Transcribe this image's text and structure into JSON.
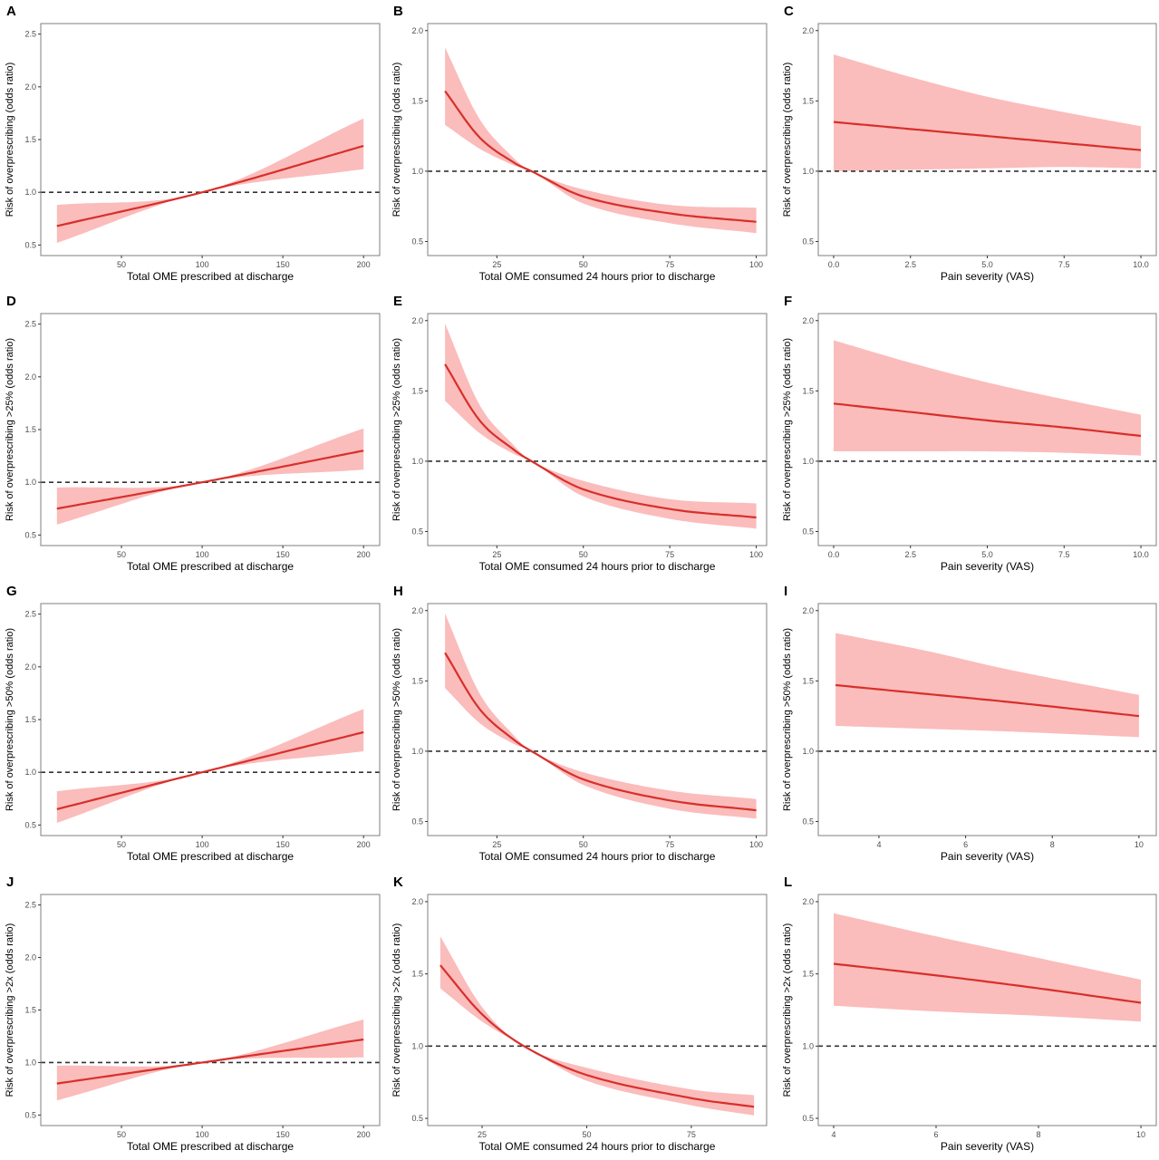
{
  "colors": {
    "line": "#d7302a",
    "band": "#fbbcbc",
    "reference": "#333333",
    "frame": "#7f7f7f"
  },
  "chart_data": [
    {
      "panel": "A",
      "type": "area",
      "xlabel": "Total OME prescribed at discharge",
      "ylabel": "Risk of overprescribing (odds ratio)",
      "xlim": [
        0,
        210
      ],
      "ylim": [
        0.4,
        2.6
      ],
      "xticks": [
        "50",
        "100",
        "150",
        "200"
      ],
      "xtickValues": [
        50,
        100,
        150,
        200
      ],
      "yticks": [
        "0.5",
        "1.0",
        "1.5",
        "2.0",
        "2.5"
      ],
      "ytickValues": [
        0.5,
        1.0,
        1.5,
        2.0,
        2.5
      ],
      "reference": 1.0,
      "x": [
        10,
        100,
        200
      ],
      "y": [
        0.68,
        1.0,
        1.44
      ],
      "lower": [
        0.52,
        1.0,
        1.22
      ],
      "upper": [
        0.88,
        1.0,
        1.7
      ]
    },
    {
      "panel": "B",
      "type": "area",
      "xlabel": "Total OME consumed 24 hours prior to discharge",
      "ylabel": "Risk of overprescribing (odds ratio)",
      "xlim": [
        5,
        103
      ],
      "ylim": [
        0.4,
        2.05
      ],
      "xticks": [
        "25",
        "50",
        "75",
        "100"
      ],
      "xtickValues": [
        25,
        50,
        75,
        100
      ],
      "yticks": [
        "0.5",
        "1.0",
        "1.5",
        "2.0"
      ],
      "ytickValues": [
        0.5,
        1.0,
        1.5,
        2.0
      ],
      "reference": 1.0,
      "x": [
        10,
        20,
        30,
        35,
        50,
        75,
        100
      ],
      "y": [
        1.57,
        1.24,
        1.06,
        1.0,
        0.82,
        0.7,
        0.64
      ],
      "lower": [
        1.33,
        1.16,
        1.04,
        1.0,
        0.77,
        0.63,
        0.56
      ],
      "upper": [
        1.88,
        1.37,
        1.09,
        1.0,
        0.87,
        0.76,
        0.74
      ]
    },
    {
      "panel": "C",
      "type": "area",
      "xlabel": "Pain severity (VAS)",
      "ylabel": "Risk of overprescribing (odds ratio)",
      "xlim": [
        -0.5,
        10.5
      ],
      "ylim": [
        0.4,
        2.05
      ],
      "xticks": [
        "0.0",
        "2.5",
        "5.0",
        "7.5",
        "10.0"
      ],
      "xtickValues": [
        0,
        2.5,
        5,
        7.5,
        10
      ],
      "yticks": [
        "0.5",
        "1.0",
        "1.5",
        "2.0"
      ],
      "ytickValues": [
        0.5,
        1.0,
        1.5,
        2.0
      ],
      "reference": 1.0,
      "x": [
        0,
        2.5,
        5,
        7.5,
        10
      ],
      "y": [
        1.35,
        1.3,
        1.25,
        1.2,
        1.15
      ],
      "lower": [
        1.0,
        1.01,
        1.02,
        1.03,
        1.02
      ],
      "upper": [
        1.83,
        1.67,
        1.53,
        1.42,
        1.32
      ]
    },
    {
      "panel": "D",
      "type": "area",
      "xlabel": "Total OME prescribed at discharge",
      "ylabel": "Risk of overprescribing >25% (odds ratio)",
      "xlim": [
        0,
        210
      ],
      "ylim": [
        0.4,
        2.6
      ],
      "xticks": [
        "50",
        "100",
        "150",
        "200"
      ],
      "xtickValues": [
        50,
        100,
        150,
        200
      ],
      "yticks": [
        "0.5",
        "1.0",
        "1.5",
        "2.0",
        "2.5"
      ],
      "ytickValues": [
        0.5,
        1.0,
        1.5,
        2.0,
        2.5
      ],
      "reference": 1.0,
      "x": [
        10,
        100,
        200
      ],
      "y": [
        0.75,
        1.0,
        1.3
      ],
      "lower": [
        0.6,
        1.0,
        1.12
      ],
      "upper": [
        0.95,
        1.0,
        1.51
      ]
    },
    {
      "panel": "E",
      "type": "area",
      "xlabel": "Total OME consumed 24 hours prior to discharge",
      "ylabel": "Risk of overprescribing >25% (odds ratio)",
      "xlim": [
        5,
        103
      ],
      "ylim": [
        0.4,
        2.05
      ],
      "xticks": [
        "25",
        "50",
        "75",
        "100"
      ],
      "xtickValues": [
        25,
        50,
        75,
        100
      ],
      "yticks": [
        "0.5",
        "1.0",
        "1.5",
        "2.0"
      ],
      "ytickValues": [
        0.5,
        1.0,
        1.5,
        2.0
      ],
      "reference": 1.0,
      "x": [
        10,
        20,
        30,
        35,
        50,
        75,
        100
      ],
      "y": [
        1.69,
        1.29,
        1.08,
        1.0,
        0.8,
        0.66,
        0.6
      ],
      "lower": [
        1.43,
        1.2,
        1.05,
        1.0,
        0.75,
        0.59,
        0.52
      ],
      "upper": [
        1.98,
        1.4,
        1.11,
        1.0,
        0.86,
        0.73,
        0.7
      ]
    },
    {
      "panel": "F",
      "type": "area",
      "xlabel": "Pain severity (VAS)",
      "ylabel": "Risk of overprescribing >25% (odds ratio)",
      "xlim": [
        -0.5,
        10.5
      ],
      "ylim": [
        0.4,
        2.05
      ],
      "xticks": [
        "0.0",
        "2.5",
        "5.0",
        "7.5",
        "10.0"
      ],
      "xtickValues": [
        0,
        2.5,
        5,
        7.5,
        10
      ],
      "yticks": [
        "0.5",
        "1.0",
        "1.5",
        "2.0"
      ],
      "ytickValues": [
        0.5,
        1.0,
        1.5,
        2.0
      ],
      "reference": 1.0,
      "x": [
        0,
        2.5,
        5,
        7.5,
        10
      ],
      "y": [
        1.41,
        1.35,
        1.29,
        1.24,
        1.18
      ],
      "lower": [
        1.07,
        1.07,
        1.07,
        1.06,
        1.04
      ],
      "upper": [
        1.86,
        1.7,
        1.56,
        1.44,
        1.33
      ]
    },
    {
      "panel": "G",
      "type": "area",
      "xlabel": "Total OME prescribed at discharge",
      "ylabel": "Risk of overprescribing >50% (odds ratio)",
      "xlim": [
        0,
        210
      ],
      "ylim": [
        0.4,
        2.6
      ],
      "xticks": [
        "50",
        "100",
        "150",
        "200"
      ],
      "xtickValues": [
        50,
        100,
        150,
        200
      ],
      "yticks": [
        "0.5",
        "1.0",
        "1.5",
        "2.0",
        "2.5"
      ],
      "ytickValues": [
        0.5,
        1.0,
        1.5,
        2.0,
        2.5
      ],
      "reference": 1.0,
      "x": [
        10,
        100,
        200
      ],
      "y": [
        0.65,
        1.0,
        1.38
      ],
      "lower": [
        0.52,
        1.0,
        1.2
      ],
      "upper": [
        0.82,
        1.0,
        1.6
      ]
    },
    {
      "panel": "H",
      "type": "area",
      "xlabel": "Total OME consumed 24 hours prior to discharge",
      "ylabel": "Risk of overprescribing >50% (odds ratio)",
      "xlim": [
        5,
        103
      ],
      "ylim": [
        0.4,
        2.05
      ],
      "xticks": [
        "25",
        "50",
        "75",
        "100"
      ],
      "xtickValues": [
        25,
        50,
        75,
        100
      ],
      "yticks": [
        "0.5",
        "1.0",
        "1.5",
        "2.0"
      ],
      "ytickValues": [
        0.5,
        1.0,
        1.5,
        2.0
      ],
      "reference": 1.0,
      "x": [
        10,
        20,
        30,
        35,
        50,
        75,
        100
      ],
      "y": [
        1.7,
        1.3,
        1.08,
        1.0,
        0.8,
        0.65,
        0.58
      ],
      "lower": [
        1.45,
        1.2,
        1.05,
        1.0,
        0.76,
        0.59,
        0.52
      ],
      "upper": [
        1.98,
        1.41,
        1.11,
        1.0,
        0.85,
        0.72,
        0.66
      ]
    },
    {
      "panel": "I",
      "type": "area",
      "xlabel": "Pain severity (VAS)",
      "ylabel": "Risk of overprescribing >50% (odds ratio)",
      "xlim": [
        2.6,
        10.4
      ],
      "ylim": [
        0.4,
        2.05
      ],
      "xticks": [
        "4",
        "6",
        "8",
        "10"
      ],
      "xtickValues": [
        4,
        6,
        8,
        10
      ],
      "yticks": [
        "0.5",
        "1.0",
        "1.5",
        "2.0"
      ],
      "ytickValues": [
        0.5,
        1.0,
        1.5,
        2.0
      ],
      "reference": 1.0,
      "x": [
        3,
        5,
        7,
        10
      ],
      "y": [
        1.47,
        1.41,
        1.35,
        1.25
      ],
      "lower": [
        1.18,
        1.16,
        1.14,
        1.1
      ],
      "upper": [
        1.84,
        1.72,
        1.58,
        1.4
      ]
    },
    {
      "panel": "J",
      "type": "area",
      "xlabel": "Total OME prescribed at discharge",
      "ylabel": "Risk of overprescribing >2x (odds ratio)",
      "xlim": [
        0,
        210
      ],
      "ylim": [
        0.4,
        2.6
      ],
      "xticks": [
        "50",
        "100",
        "150",
        "200"
      ],
      "xtickValues": [
        50,
        100,
        150,
        200
      ],
      "yticks": [
        "0.5",
        "1.0",
        "1.5",
        "2.0",
        "2.5"
      ],
      "ytickValues": [
        0.5,
        1.0,
        1.5,
        2.0,
        2.5
      ],
      "reference": 1.0,
      "x": [
        10,
        100,
        200
      ],
      "y": [
        0.8,
        1.0,
        1.22
      ],
      "lower": [
        0.64,
        1.0,
        1.05
      ],
      "upper": [
        0.97,
        1.0,
        1.41
      ]
    },
    {
      "panel": "K",
      "type": "area",
      "xlabel": "Total OME consumed 24 hours prior to discharge",
      "ylabel": "Risk of overprescribing >2x (odds ratio)",
      "xlim": [
        12,
        93
      ],
      "ylim": [
        0.45,
        2.05
      ],
      "xticks": [
        "25",
        "50",
        "75"
      ],
      "xtickValues": [
        25,
        50,
        75
      ],
      "yticks": [
        "0.5",
        "1.0",
        "1.5",
        "2.0"
      ],
      "ytickValues": [
        0.5,
        1.0,
        1.5,
        2.0
      ],
      "reference": 1.0,
      "x": [
        15,
        25,
        35,
        50,
        75,
        90
      ],
      "y": [
        1.56,
        1.22,
        1.0,
        0.8,
        0.64,
        0.58
      ],
      "lower": [
        1.4,
        1.17,
        1.0,
        0.76,
        0.59,
        0.52
      ],
      "upper": [
        1.76,
        1.27,
        1.0,
        0.85,
        0.7,
        0.66
      ]
    },
    {
      "panel": "L",
      "type": "area",
      "xlabel": "Pain severity (VAS)",
      "ylabel": "Risk of overprescribing >2x (odds ratio)",
      "xlim": [
        3.7,
        10.3
      ],
      "ylim": [
        0.45,
        2.05
      ],
      "xticks": [
        "4",
        "6",
        "8",
        "10"
      ],
      "xtickValues": [
        4,
        6,
        8,
        10
      ],
      "yticks": [
        "0.5",
        "1.0",
        "1.5",
        "2.0"
      ],
      "ytickValues": [
        0.5,
        1.0,
        1.5,
        2.0
      ],
      "reference": 1.0,
      "x": [
        4,
        6,
        8,
        10
      ],
      "y": [
        1.57,
        1.49,
        1.4,
        1.3
      ],
      "lower": [
        1.28,
        1.24,
        1.21,
        1.17
      ],
      "upper": [
        1.92,
        1.76,
        1.61,
        1.46
      ]
    }
  ]
}
